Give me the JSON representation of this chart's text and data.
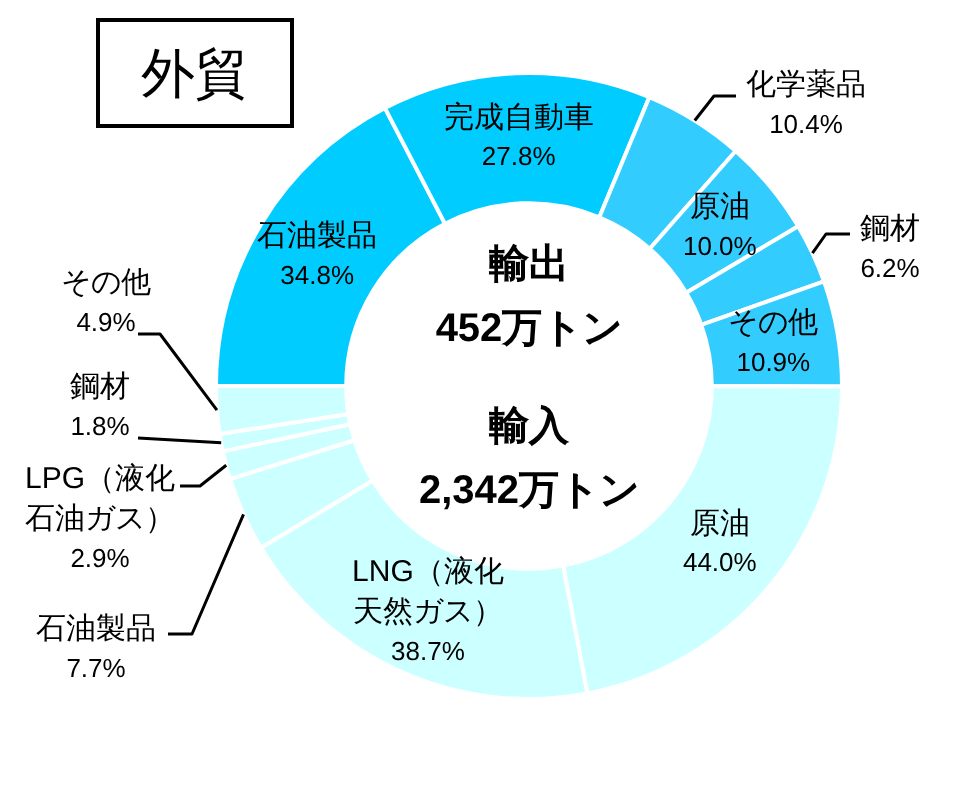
{
  "chart_data": {
    "type": "donut",
    "title": "外貿",
    "categories": [
      "石油製品",
      "完成自動車",
      "化学薬品",
      "原油",
      "鋼材",
      "その他",
      "原油",
      "LNG（液化天然ガス）",
      "石油製品",
      "LPG（液化石油ガス）",
      "鋼材",
      "その他"
    ],
    "values": [
      34.8,
      27.8,
      10.4,
      10.0,
      6.2,
      10.9,
      44.0,
      38.7,
      7.7,
      2.9,
      1.8,
      4.9
    ],
    "colors": [
      "#00ccff",
      "#00ccff",
      "#33ccff",
      "#33ccff",
      "#33ccff",
      "#33ccff",
      "#ccffff",
      "#ccffff",
      "#ccffff",
      "#ccffff",
      "#ccffff",
      "#ccffff"
    ],
    "value_labels": [
      "34.8%",
      "27.8%",
      "10.4%",
      "10.0%",
      "6.2%",
      "10.9%",
      "44.0%",
      "38.7%",
      "7.7%",
      "2.9%",
      "1.8%",
      "4.9%"
    ],
    "annotations": [
      "輸出",
      "452万トン",
      "輸入",
      "2,342万トン"
    ]
  }
}
